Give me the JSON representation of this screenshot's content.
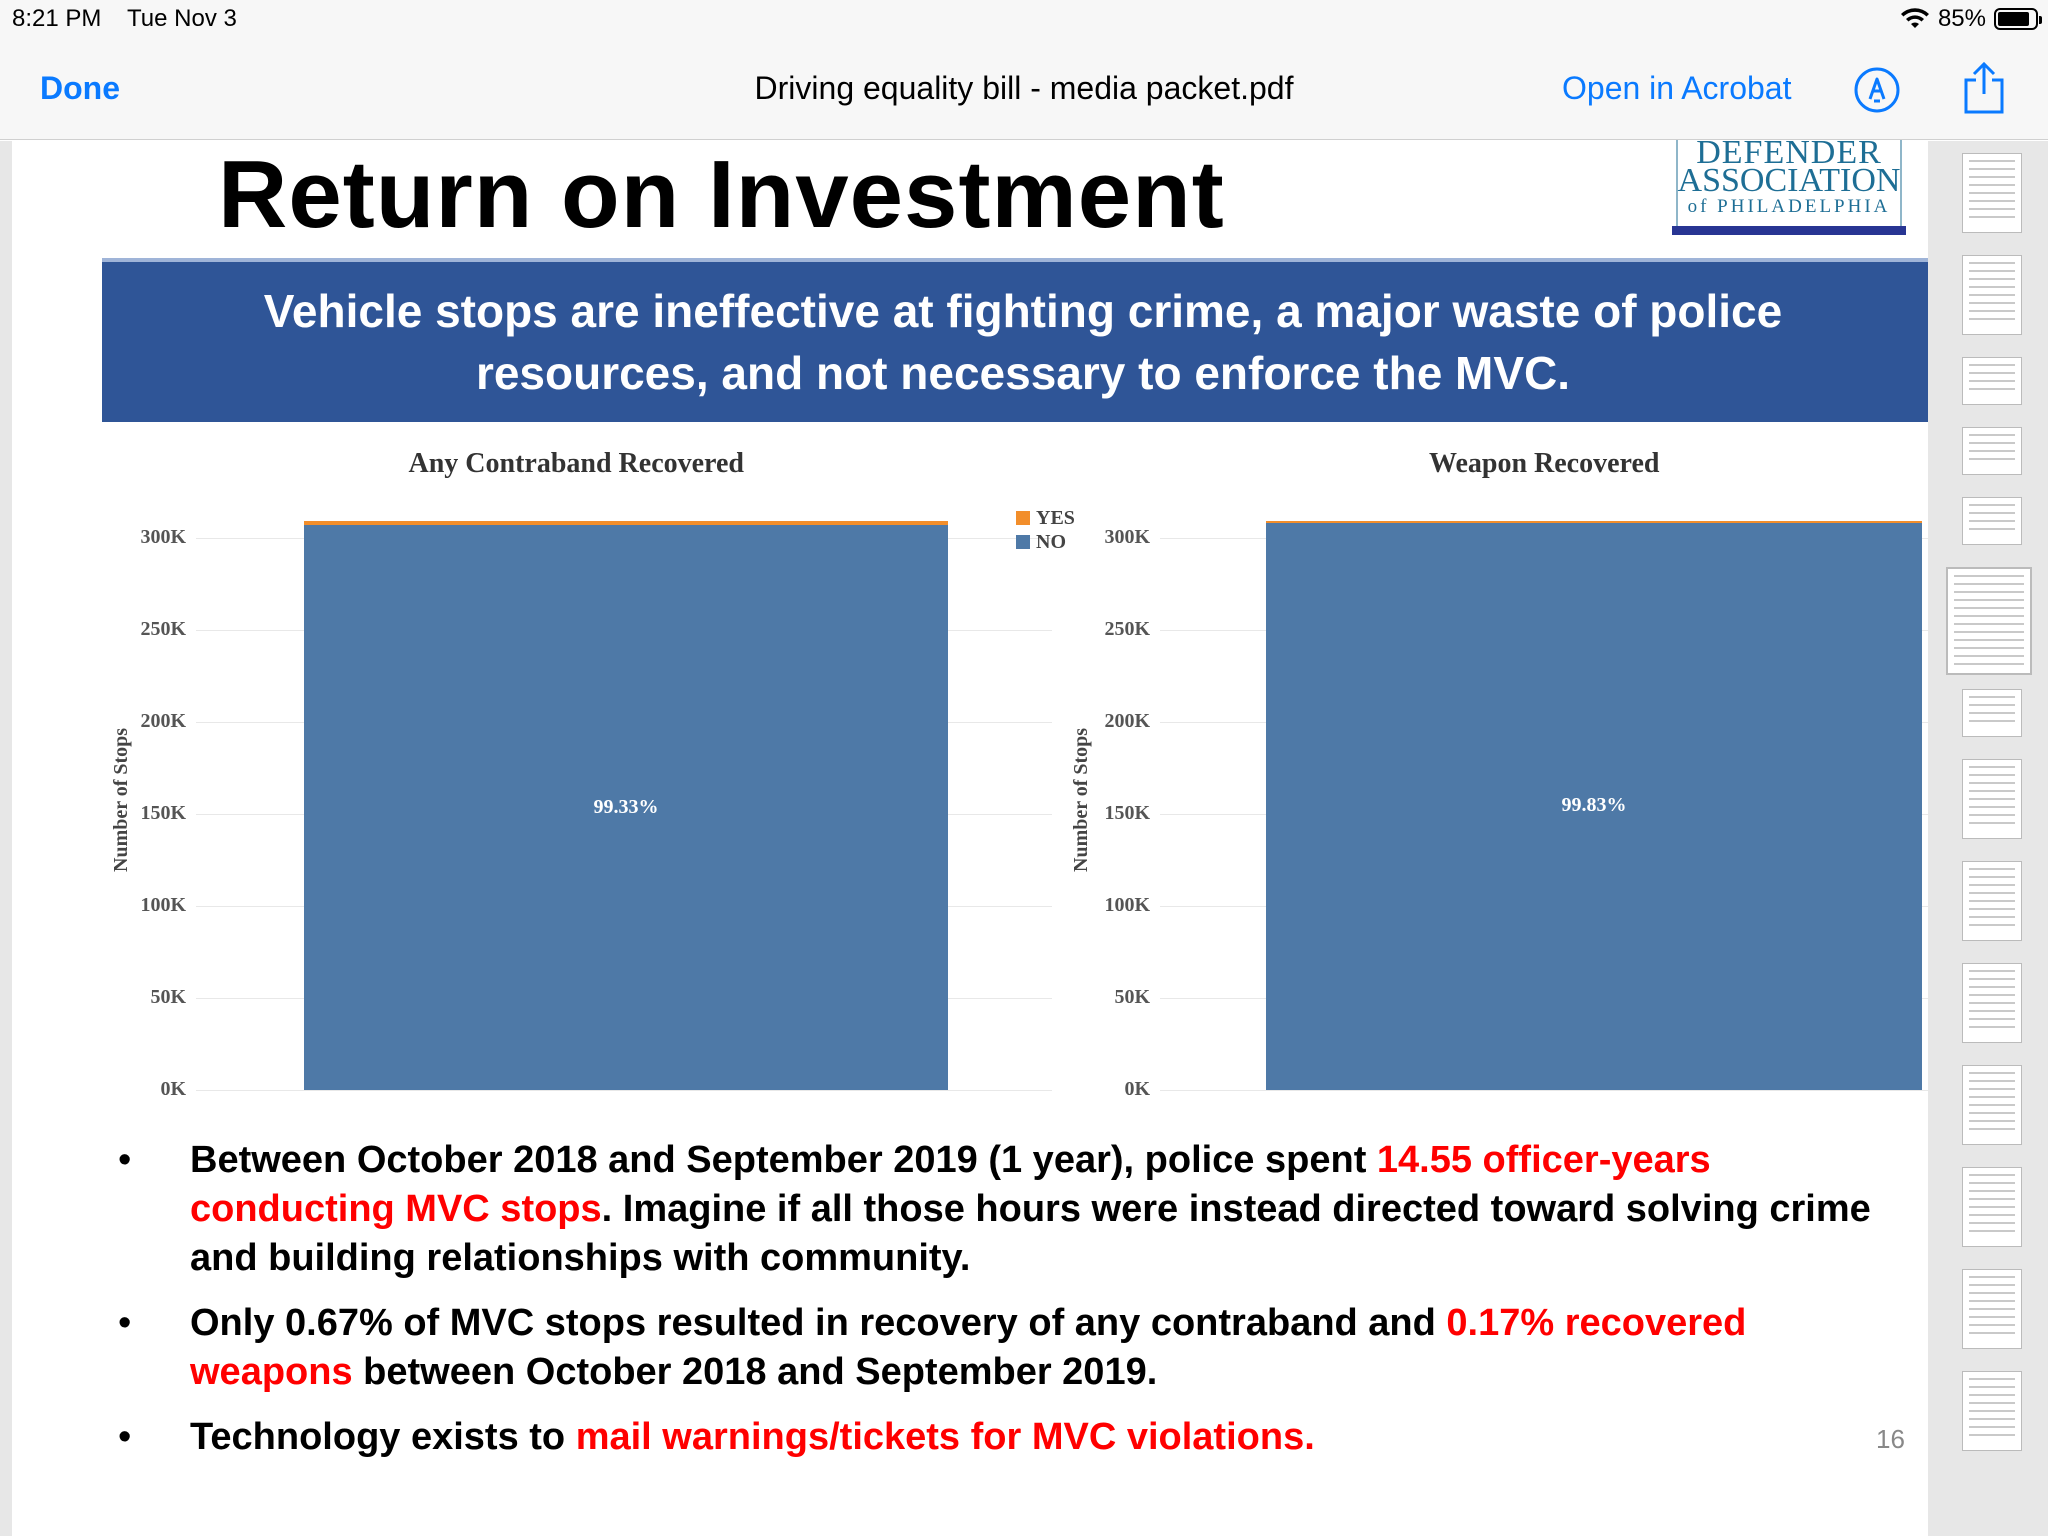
{
  "status": {
    "time": "8:21 PM",
    "date": "Tue Nov 3",
    "battery": "85%",
    "battery_level": 0.85
  },
  "nav": {
    "done": "Done",
    "title": "Driving equality bill - media packet.pdf",
    "open_acrobat": "Open in Acrobat"
  },
  "slide": {
    "title": "Return on Investment",
    "logo": {
      "line1": "DEFENDER",
      "line2": "ASSOCIATION",
      "line3": "of PHILADELPHIA"
    },
    "banner": "Vehicle stops are ineffective at fighting crime, a major waste of police resources, and not necessary to enforce the MVC.",
    "bullets": [
      {
        "parts": [
          {
            "text": "Between October 2018 and September 2019 (1 year), police spent ",
            "red": false
          },
          {
            "text": "14.55 officer-years conducting MVC stops",
            "red": true
          },
          {
            "text": ". Imagine if all those hours were instead directed toward solving crime and building relationships with community.",
            "red": false
          }
        ]
      },
      {
        "parts": [
          {
            "text": "Only 0.67% of MVC stops resulted in recovery of any contraband and ",
            "red": false
          },
          {
            "text": "0.17% recovered weapons",
            "red": true
          },
          {
            "text": " between October 2018 and September 2019.",
            "red": false
          }
        ]
      },
      {
        "parts": [
          {
            "text": "Technology exists to ",
            "red": false
          },
          {
            "text": "mail warnings/tickets for MVC violations.",
            "red": true
          }
        ]
      }
    ],
    "page_number": "16"
  },
  "chart_data": [
    {
      "type": "bar",
      "title": "Any Contraband Recovered",
      "ylabel": "Number of Stops",
      "yticks": [
        "0K",
        "50K",
        "100K",
        "150K",
        "200K",
        "250K",
        "300K"
      ],
      "ylim": [
        0,
        310000
      ],
      "stacked": true,
      "series": [
        {
          "name": "NO",
          "color": "#4e79a7",
          "value": 307000,
          "label": "99.33%"
        },
        {
          "name": "YES",
          "color": "#f28e2b",
          "value": 2100
        }
      ],
      "legend": [
        "YES",
        "NO"
      ],
      "legend_position": "top-right"
    },
    {
      "type": "bar",
      "title": "Weapon Recovered",
      "ylabel": "Number of Stops",
      "yticks": [
        "0K",
        "50K",
        "100K",
        "150K",
        "200K",
        "250K",
        "300K"
      ],
      "ylim": [
        0,
        310000
      ],
      "stacked": true,
      "series": [
        {
          "name": "NO",
          "color": "#4e79a7",
          "value": 308600,
          "label": "99.83%"
        },
        {
          "name": "YES",
          "color": "#f28e2b",
          "value": 500
        }
      ]
    }
  ],
  "thumbnails": {
    "count": 17,
    "active_index": 5
  }
}
